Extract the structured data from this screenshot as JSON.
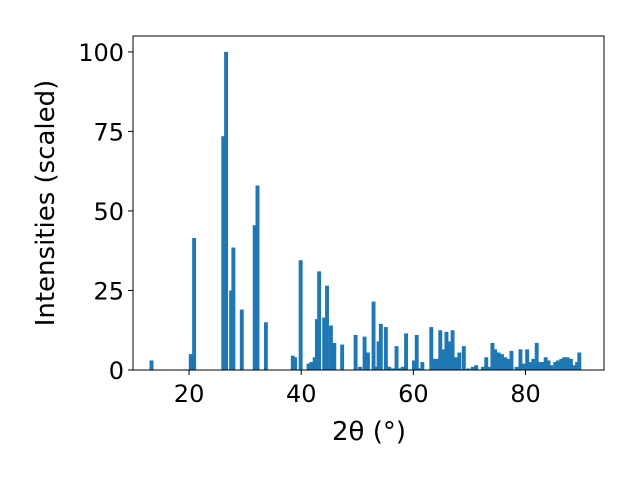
{
  "chart_data": {
    "type": "bar",
    "xlabel": "2θ (°)",
    "ylabel": "Intensities (scaled)",
    "xlim": [
      10,
      94
    ],
    "ylim": [
      0,
      105
    ],
    "x_ticks": [
      20,
      40,
      60,
      80
    ],
    "y_ticks": [
      0,
      25,
      50,
      75,
      100
    ],
    "grid": false,
    "bar_color": "#1f77b4",
    "bar_width": 0.7,
    "x": [
      13.3,
      20.3,
      20.9,
      26.1,
      26.6,
      27.5,
      27.9,
      29.4,
      31.7,
      32.2,
      33.7,
      38.5,
      38.9,
      39.9,
      41.3,
      41.8,
      42.4,
      42.8,
      43.2,
      44.1,
      44.6,
      45.3,
      45.9,
      47.3,
      49.7,
      50.5,
      51.3,
      51.9,
      52.9,
      53.4,
      53.8,
      54.2,
      55.1,
      55.7,
      56.4,
      57.0,
      57.6,
      58.1,
      58.7,
      60.1,
      60.6,
      61.2,
      61.6,
      63.2,
      63.8,
      64.3,
      64.8,
      65.4,
      65.9,
      66.5,
      67.0,
      67.6,
      68.2,
      69.0,
      69.8,
      70.6,
      71.2,
      72.4,
      73.0,
      73.6,
      74.1,
      74.6,
      75.2,
      75.8,
      76.4,
      77.0,
      77.5,
      78.4,
      79.1,
      79.7,
      80.3,
      80.9,
      81.4,
      82.0,
      82.6,
      83.1,
      83.6,
      84.1,
      84.6,
      85.3,
      85.8,
      86.4,
      86.9,
      87.5,
      88.1,
      88.7,
      89.2,
      89.6
    ],
    "values": [
      3,
      5,
      41.5,
      73.5,
      100,
      25,
      38.5,
      19,
      45.5,
      58,
      15,
      4.5,
      4,
      34.5,
      2,
      2.5,
      4,
      16,
      31,
      16.5,
      26.5,
      14,
      8.5,
      8,
      11,
      1,
      10.5,
      5.5,
      21.5,
      1,
      9,
      14.5,
      13.5,
      1,
      0.5,
      7.5,
      0.5,
      1,
      11.5,
      3,
      11,
      0.5,
      2.5,
      13.5,
      3.5,
      3.5,
      12.5,
      6.5,
      12,
      9,
      12.5,
      4,
      5.5,
      7.5,
      0.5,
      1,
      1.5,
      1,
      4,
      1,
      8.5,
      6.5,
      5.5,
      5,
      4,
      3.5,
      6,
      1,
      6.5,
      2,
      6.5,
      2.5,
      3.5,
      8.5,
      2.5,
      2.5,
      4,
      3,
      1.5,
      2.5,
      3,
      3.5,
      4,
      4,
      3.5,
      1.5,
      2.5,
      5.5
    ]
  }
}
